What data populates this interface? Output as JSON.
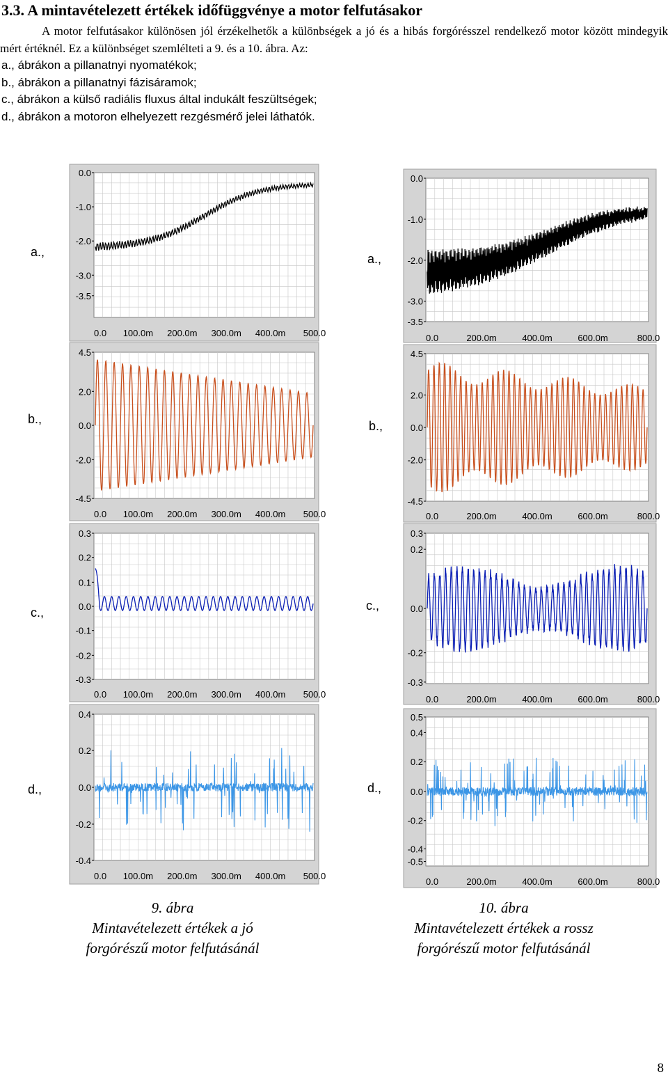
{
  "section_heading": "3.3. A mintavételezett értékek időfüggvénye a motor felfutásakor",
  "intro_paragraph": "A motor felfutásakor különösen jól érzékelhetők a különbségek a jó és a hibás forgórésszel rendelkező motor között mindegyik mért értéknél. Ez a különbséget szemlélteti a 9. és a 10. ábra. Az:",
  "list_items": [
    "a., ábrákon a pillanatnyi nyomatékok;",
    "b., ábrákon a pillanatnyi fázisáramok;",
    "c., ábrákon a külső radiális fluxus által indukált feszültségek;",
    "d., ábrákon a motoron elhelyezett rezgésmérő jelei láthatók."
  ],
  "subplot_labels": [
    "a.,",
    "b.,",
    "c.,",
    "d.,"
  ],
  "figures": [
    {
      "number": "9. ábra",
      "caption_line1": "Mintavételezett értékek a jó",
      "caption_line2": "forgórészű motor felfutásánál",
      "x_ticks": [
        "0.0",
        "100.0m",
        "200.0m",
        "300.0m",
        "400.0m",
        "500.0"
      ],
      "panels": [
        {
          "y_ticks": [
            "0.0",
            "-1.0",
            "-2.0",
            "-3.0",
            "-3.5"
          ]
        },
        {
          "y_ticks": [
            "4.5",
            "2.0",
            "0.0",
            "-2.0",
            "-4.5"
          ]
        },
        {
          "y_ticks": [
            "0.3",
            "0.2",
            "0.1",
            "0.0",
            "-0.1",
            "-0.2",
            "-0.3"
          ]
        },
        {
          "y_ticks": [
            "0.4",
            "0.2",
            "0.0",
            "-0.2",
            "-0.4"
          ]
        }
      ]
    },
    {
      "number": "10. ábra",
      "caption_line1": "Mintavételezett értékek a rossz",
      "caption_line2": "forgórészű motor felfutásánál",
      "x_ticks": [
        "0.0",
        "200.0m",
        "400.0m",
        "600.0m",
        "800.0"
      ],
      "panels": [
        {
          "y_ticks": [
            "0.0",
            "-1.0",
            "-2.0",
            "-3.0",
            "-3.5"
          ]
        },
        {
          "y_ticks": [
            "4.5",
            "2.0",
            "0.0",
            "-2.0",
            "-4.5"
          ]
        },
        {
          "y_ticks": [
            "0.3",
            "0.2",
            "0.0",
            "-0.2",
            "-0.3"
          ]
        },
        {
          "y_ticks": [
            "0.5",
            "0.4",
            "0.2",
            "0.0",
            "-0.2",
            "-0.4",
            "-0.5"
          ]
        }
      ]
    }
  ],
  "colors": {
    "torque": "#000000",
    "current": "#c8501e",
    "flux": "#0a1eb4",
    "vibration": "#3c96e6",
    "grid": "#c8c8c8",
    "panel": "#d4d4d4"
  },
  "page_number": "8"
}
